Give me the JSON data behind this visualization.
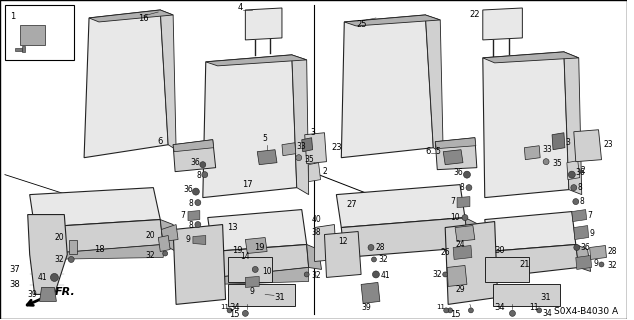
{
  "background_color": "#ffffff",
  "border_color": "#000000",
  "diagram_code": "S0X4-B4030 A",
  "fig_width": 6.34,
  "fig_height": 3.2,
  "dpi": 100,
  "line_color": "#222222",
  "fill_light": "#e8e8e8",
  "fill_mid": "#d0d0d0",
  "fill_dark": "#b0b0b0",
  "fill_seat": "#c8c8c8",
  "text_color": "#000000",
  "fs": 5.5,
  "fs_code": 5.5
}
